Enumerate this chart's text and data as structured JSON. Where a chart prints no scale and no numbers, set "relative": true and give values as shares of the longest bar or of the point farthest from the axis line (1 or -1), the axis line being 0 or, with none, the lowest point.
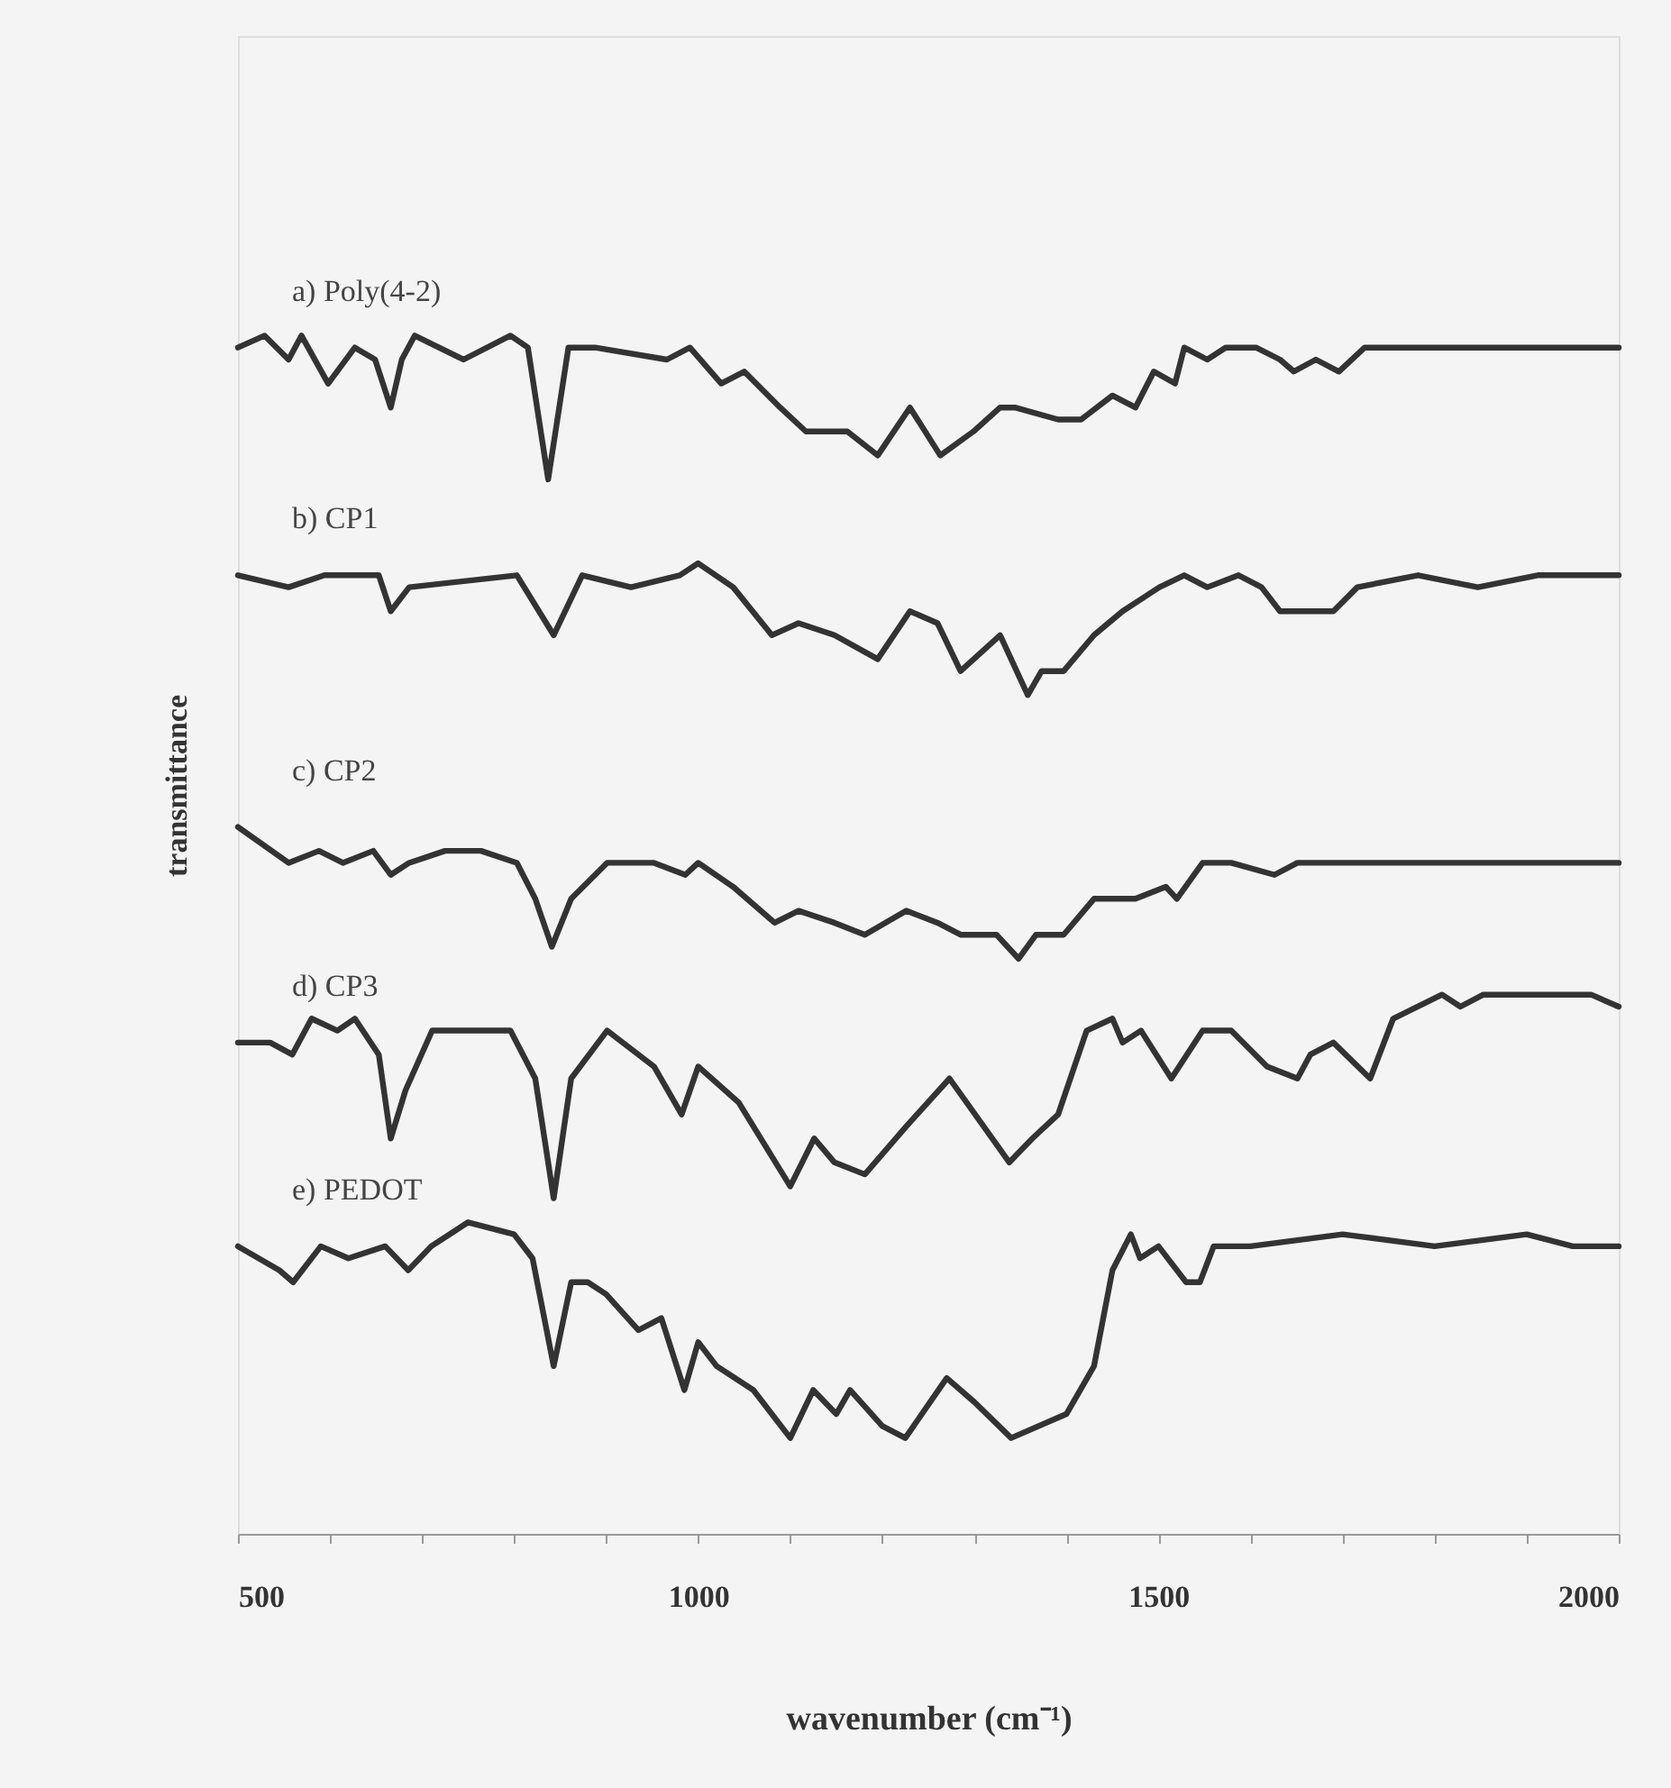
{
  "chart_data": {
    "type": "line",
    "relative": true,
    "xlabel": "wavenumber (cm⁻¹)",
    "ylabel": "transmittance",
    "xlim": [
      500,
      2000
    ],
    "xticks": [
      500,
      {
        "value": 600,
        "label": null
      },
      {
        "value": 700,
        "label": null
      },
      {
        "value": 800,
        "label": null
      },
      {
        "value": 900,
        "label": null
      },
      1000,
      {
        "value": 1100,
        "label": null
      },
      {
        "value": 1200,
        "label": null
      },
      {
        "value": 1300,
        "label": null
      },
      {
        "value": 1400,
        "label": null
      },
      1500,
      {
        "value": 1600,
        "label": null
      },
      {
        "value": 1700,
        "label": null
      },
      {
        "value": 1800,
        "label": null
      },
      {
        "value": 1900,
        "label": null
      },
      2000
    ],
    "grid": false,
    "series": [
      {
        "name": "a) Poly(4-2)",
        "color": "#333333",
        "x": [
          500,
          529,
          555,
          569,
          598,
          627,
          649,
          666,
          678,
          692,
          745,
          796,
          815,
          837,
          859,
          888,
          966,
          991,
          1025,
          1050,
          1089,
          1117,
          1162,
          1195,
          1230,
          1263,
          1299,
          1328,
          1344,
          1391,
          1416,
          1450,
          1475,
          1495,
          1518,
          1528,
          1553,
          1573,
          1606,
          1632,
          1647,
          1671,
          1696,
          1724,
          1782,
          1847,
          1912,
          2000
        ],
        "values": [
          0.99,
          1.0,
          0.98,
          1.0,
          0.96,
          0.99,
          0.98,
          0.94,
          0.98,
          1.0,
          0.98,
          1.0,
          0.99,
          0.88,
          0.99,
          0.99,
          0.98,
          0.99,
          0.96,
          0.97,
          0.94,
          0.92,
          0.92,
          0.9,
          0.94,
          0.9,
          0.92,
          0.94,
          0.94,
          0.93,
          0.93,
          0.95,
          0.94,
          0.97,
          0.96,
          0.99,
          0.98,
          0.99,
          0.99,
          0.98,
          0.97,
          0.98,
          0.97,
          0.99,
          0.99,
          0.99,
          0.99,
          0.99
        ]
      },
      {
        "name": "b) CP1",
        "color": "#333333",
        "x": [
          500,
          555,
          594,
          653,
          666,
          686,
          803,
          843,
          874,
          927,
          980,
          1000,
          1038,
          1080,
          1109,
          1148,
          1195,
          1230,
          1260,
          1285,
          1328,
          1358,
          1373,
          1397,
          1430,
          1461,
          1501,
          1528,
          1553,
          1587,
          1612,
          1632,
          1651,
          1690,
          1716,
          1782,
          1847,
          1912,
          2000
        ],
        "values": [
          0.8,
          0.79,
          0.8,
          0.8,
          0.77,
          0.79,
          0.8,
          0.75,
          0.8,
          0.79,
          0.8,
          0.81,
          0.79,
          0.75,
          0.76,
          0.75,
          0.73,
          0.77,
          0.76,
          0.72,
          0.75,
          0.7,
          0.72,
          0.72,
          0.75,
          0.77,
          0.79,
          0.8,
          0.79,
          0.8,
          0.79,
          0.77,
          0.77,
          0.77,
          0.79,
          0.8,
          0.79,
          0.8,
          0.8
        ]
      },
      {
        "name": "c) CP2",
        "color": "#333333",
        "x": [
          500,
          555,
          588,
          614,
          647,
          666,
          686,
          725,
          764,
          803,
          823,
          841,
          862,
          901,
          952,
          986,
          1000,
          1038,
          1083,
          1109,
          1148,
          1181,
          1226,
          1260,
          1285,
          1324,
          1348,
          1367,
          1397,
          1430,
          1475,
          1508,
          1520,
          1548,
          1579,
          1626,
          1651,
          1716,
          1782,
          1880,
          2000
        ],
        "values": [
          0.59,
          0.56,
          0.57,
          0.56,
          0.57,
          0.55,
          0.56,
          0.57,
          0.57,
          0.56,
          0.53,
          0.49,
          0.53,
          0.56,
          0.56,
          0.55,
          0.56,
          0.54,
          0.51,
          0.52,
          0.51,
          0.5,
          0.52,
          0.51,
          0.5,
          0.5,
          0.48,
          0.5,
          0.5,
          0.53,
          0.53,
          0.54,
          0.53,
          0.56,
          0.56,
          0.55,
          0.56,
          0.56,
          0.56,
          0.56,
          0.56
        ]
      },
      {
        "name": "d) CP3",
        "color": "#333333",
        "x": [
          500,
          535,
          559,
          580,
          608,
          627,
          653,
          666,
          682,
          711,
          796,
          823,
          843,
          862,
          901,
          952,
          982,
          1000,
          1044,
          1100,
          1126,
          1148,
          1181,
          1226,
          1273,
          1338,
          1363,
          1391,
          1422,
          1450,
          1461,
          1481,
          1514,
          1548,
          1579,
          1618,
          1651,
          1665,
          1690,
          1730,
          1755,
          1808,
          1828,
          1853,
          1912,
          1939,
          1970,
          2000
        ],
        "values": [
          0.41,
          0.41,
          0.4,
          0.43,
          0.42,
          0.43,
          0.4,
          0.33,
          0.37,
          0.42,
          0.42,
          0.38,
          0.28,
          0.38,
          0.42,
          0.39,
          0.35,
          0.39,
          0.36,
          0.29,
          0.33,
          0.31,
          0.3,
          0.34,
          0.38,
          0.31,
          0.33,
          0.35,
          0.42,
          0.43,
          0.41,
          0.42,
          0.38,
          0.42,
          0.42,
          0.39,
          0.38,
          0.4,
          0.41,
          0.38,
          0.43,
          0.45,
          0.44,
          0.45,
          0.45,
          0.45,
          0.45,
          0.44
        ]
      },
      {
        "name": "e) PEDOT",
        "color": "#333333",
        "x": [
          500,
          545,
          560,
          590,
          620,
          660,
          685,
          710,
          750,
          800,
          820,
          843,
          862,
          880,
          900,
          935,
          960,
          985,
          1000,
          1020,
          1060,
          1100,
          1125,
          1150,
          1165,
          1200,
          1225,
          1270,
          1300,
          1340,
          1400,
          1430,
          1450,
          1470,
          1480,
          1500,
          1530,
          1545,
          1560,
          1600,
          1700,
          1800,
          1900,
          1950,
          2000
        ],
        "values": [
          0.24,
          0.22,
          0.21,
          0.24,
          0.23,
          0.24,
          0.22,
          0.24,
          0.26,
          0.25,
          0.23,
          0.14,
          0.21,
          0.21,
          0.2,
          0.17,
          0.18,
          0.12,
          0.16,
          0.14,
          0.12,
          0.08,
          0.12,
          0.1,
          0.12,
          0.09,
          0.08,
          0.13,
          0.11,
          0.08,
          0.1,
          0.14,
          0.22,
          0.25,
          0.23,
          0.24,
          0.21,
          0.21,
          0.24,
          0.24,
          0.25,
          0.24,
          0.25,
          0.24,
          0.24
        ]
      }
    ]
  }
}
